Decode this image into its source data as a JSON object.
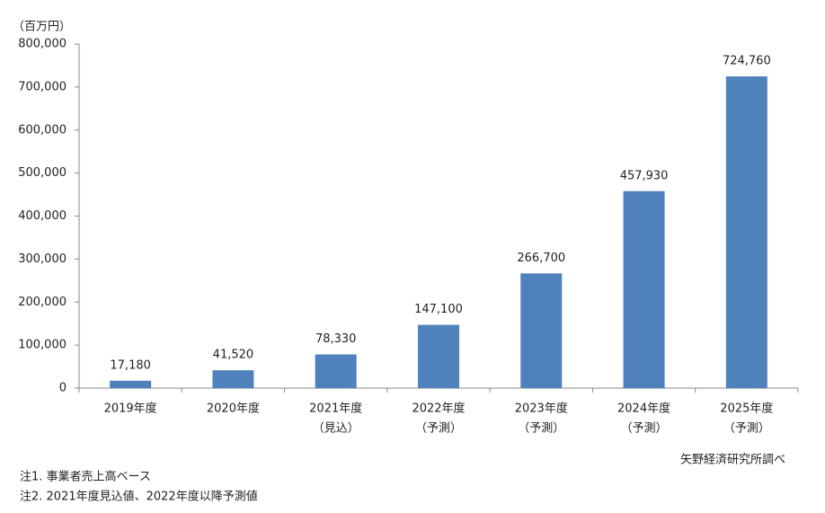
{
  "chart_data": {
    "type": "bar",
    "unit_label": "（百万円）",
    "categories": [
      "2019年度",
      "2020年度",
      "2021年度",
      "2022年度",
      "2023年度",
      "2024年度",
      "2025年度"
    ],
    "category_notes": [
      null,
      null,
      "（見込）",
      "（予測）",
      "（予測）",
      "（予測）",
      "（予測）"
    ],
    "values": [
      17180,
      41520,
      78330,
      147100,
      266700,
      457930,
      724760
    ],
    "value_labels": [
      "17,180",
      "41,520",
      "78,330",
      "147,100",
      "266,700",
      "457,930",
      "724,760"
    ],
    "color": "#4f81bd",
    "ylim": [
      0,
      800000
    ],
    "yticks": [
      0,
      {
        "value": 100000,
        "label": "100,000"
      },
      {
        "value": 200000,
        "label": "200,000"
      },
      {
        "value": 300000,
        "label": "300,000"
      },
      {
        "value": 400000,
        "label": "400,000"
      },
      {
        "value": 500000,
        "label": "500,000"
      },
      {
        "value": 600000,
        "label": "600,000"
      },
      {
        "value": 700000,
        "label": "700,000"
      },
      {
        "value": 800000,
        "label": "800,000"
      }
    ],
    "grid": false,
    "source": "矢野経済研究所調べ",
    "notes": [
      "注1. 事業者売上高ベース",
      "注2. 2021年度見込値、2022年度以降予測値"
    ]
  }
}
